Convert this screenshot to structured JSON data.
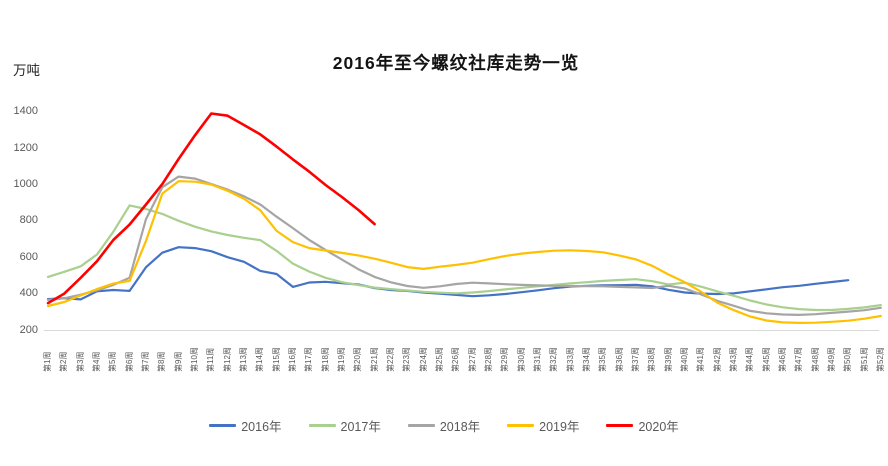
{
  "chart_data": {
    "type": "line",
    "title": "2016年至今螺纹社库走势一览",
    "ylabel": "万吨",
    "xlabel": "",
    "ylim": [
      200,
      1400
    ],
    "yticks": [
      200,
      400,
      600,
      800,
      1000,
      1200,
      1400
    ],
    "grid": false,
    "legend_position": "bottom",
    "axis_text_color": "#595959",
    "axis_line_color": "#D9D9D9",
    "categories": [
      "第1周",
      "第2周",
      "第3周",
      "第4周",
      "第5周",
      "第6周",
      "第7周",
      "第8周",
      "第9周",
      "第10周",
      "第11周",
      "第12周",
      "第13周",
      "第14周",
      "第15周",
      "第16周",
      "第17周",
      "第18周",
      "第19周",
      "第20周",
      "第21周",
      "第22周",
      "第23周",
      "第24周",
      "第25周",
      "第26周",
      "第27周",
      "第28周",
      "第29周",
      "第30周",
      "第31周",
      "第32周",
      "第33周",
      "第34周",
      "第35周",
      "第36周",
      "第37周",
      "第38周",
      "第39周",
      "第40周",
      "第41周",
      "第42周",
      "第43周",
      "第44周",
      "第45周",
      "第46周",
      "第47周",
      "第48周",
      "第49周",
      "第50周",
      "第51周",
      "第52周"
    ],
    "series": [
      {
        "name": "2016年",
        "color": "#4472C4",
        "values": [
          370,
          375,
          368,
          413,
          420,
          415,
          545,
          625,
          655,
          650,
          633,
          600,
          575,
          525,
          508,
          437,
          461,
          465,
          457,
          450,
          431,
          420,
          415,
          406,
          400,
          393,
          386,
          391,
          398,
          408,
          418,
          430,
          439,
          443,
          445,
          446,
          448,
          440,
          421,
          406,
          400,
          398,
          402,
          413,
          424,
          435,
          443,
          454,
          464,
          474,
          null,
          null
        ]
      },
      {
        "name": "2017年",
        "color": "#A9D08E",
        "values": [
          492,
          520,
          550,
          615,
          740,
          885,
          865,
          838,
          800,
          768,
          742,
          722,
          707,
          694,
          635,
          565,
          521,
          487,
          463,
          447,
          433,
          425,
          417,
          410,
          405,
          402,
          406,
          414,
          423,
          432,
          440,
          448,
          456,
          463,
          470,
          475,
          479,
          468,
          450,
          460,
          438,
          412,
          388,
          362,
          340,
          325,
          315,
          310,
          310,
          316,
          324,
          337
        ]
      },
      {
        "name": "2018年",
        "color": "#A5A5A5",
        "values": [
          365,
          374,
          394,
          418,
          448,
          487,
          810,
          985,
          1043,
          1032,
          1002,
          972,
          935,
          890,
          823,
          760,
          695,
          640,
          587,
          534,
          492,
          462,
          442,
          432,
          440,
          453,
          460,
          456,
          452,
          448,
          445,
          443,
          442,
          441,
          440,
          437,
          434,
          431,
          443,
          428,
          395,
          360,
          333,
          305,
          292,
          285,
          283,
          287,
          294,
          301,
          309,
          322
        ]
      },
      {
        "name": "2019年",
        "color": "#FFC000",
        "values": [
          332,
          354,
          390,
          425,
          455,
          470,
          690,
          950,
          1018,
          1015,
          1000,
          965,
          922,
          858,
          745,
          683,
          650,
          637,
          624,
          610,
          592,
          570,
          546,
          536,
          548,
          558,
          570,
          589,
          607,
          620,
          629,
          636,
          638,
          634,
          627,
          609,
          588,
          553,
          505,
          462,
          410,
          350,
          309,
          274,
          252,
          242,
          239,
          240,
          245,
          251,
          262,
          277
        ]
      },
      {
        "name": "2020年",
        "color": "#FF0000",
        "values": [
          348,
          400,
          487,
          578,
          695,
          780,
          890,
          1002,
          1140,
          1270,
          1390,
          1378,
          1327,
          1275,
          1208,
          1138,
          1070,
          997,
          931,
          860,
          782,
          null,
          null,
          null,
          null,
          null,
          null,
          null,
          null,
          null,
          null,
          null,
          null,
          null,
          null,
          null,
          null,
          null,
          null,
          null,
          null,
          null,
          null,
          null,
          null,
          null,
          null,
          null,
          null,
          null,
          null,
          null
        ]
      }
    ]
  }
}
